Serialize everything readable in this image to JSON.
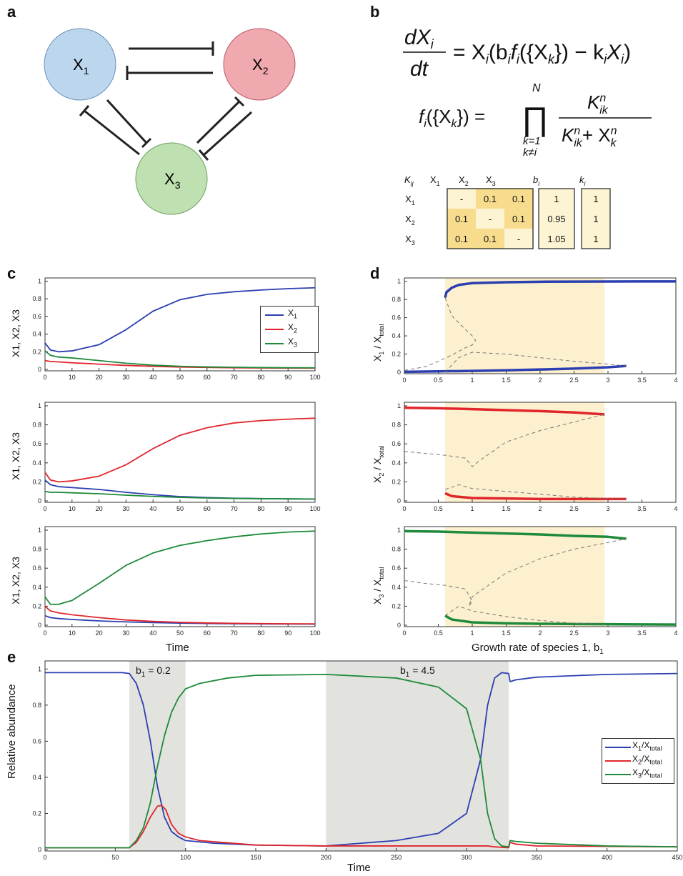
{
  "panels": {
    "a": "a",
    "b": "b",
    "c": "c",
    "d": "d",
    "e": "e"
  },
  "network": {
    "nodes": [
      {
        "label_main": "X",
        "label_sub": "1",
        "fill": "#bcd6ee",
        "stroke": "#6a8fb8"
      },
      {
        "label_main": "X",
        "label_sub": "2",
        "fill": "#f1a9b0",
        "stroke": "#b85a66"
      },
      {
        "label_main": "X",
        "label_sub": "3",
        "fill": "#bfe0b1",
        "stroke": "#6fa062"
      }
    ]
  },
  "equations": {
    "eq1_lhs_top": "dX",
    "eq1_lhs_top_sub": "i",
    "eq1_lhs_bot": "dt",
    "eq1_rhs": "= X",
    "eq1_rhs_sub": "i",
    "eq1_rhs2": "(b",
    "eq1_rhs2_sub": "i",
    "eq1_rhs3": "f",
    "eq1_rhs3_sub": "i",
    "eq1_rhs4": "({X",
    "eq1_rhs4_sub": "k",
    "eq1_rhs5": "}) − k",
    "eq1_rhs5_sub": "i",
    "eq1_rhs6": "X",
    "eq1_rhs6_sub": "i",
    "eq1_rhs7": ")",
    "eq2_lhs": "f",
    "eq2_lhs_sub": "i",
    "eq2_lhs2": "({X",
    "eq2_lhs2_sub": "k",
    "eq2_lhs3": "}) =",
    "eq2_prod_top": "N",
    "eq2_prod": "∏",
    "eq2_prod_bot1": "k=1",
    "eq2_prod_bot2": "k≠i",
    "eq2_num": "K",
    "eq2_num_sup": "n",
    "eq2_num_sub": "ik",
    "eq2_den": "K",
    "eq2_den_sup": "n",
    "eq2_den_sub": "ik",
    "eq2_den2": "+ X",
    "eq2_den2_sup": "n",
    "eq2_den2_sub": "k"
  },
  "param_table": {
    "corner": "K",
    "corner_sub": "ij",
    "cols": [
      {
        "m": "X",
        "s": "1"
      },
      {
        "m": "X",
        "s": "2"
      },
      {
        "m": "X",
        "s": "3"
      }
    ],
    "b_header": "b",
    "b_header_sub": "i",
    "k_header": "k",
    "k_header_sub": "i",
    "rows": [
      {
        "m": "X",
        "s": "1",
        "cells": [
          "-",
          "0.1",
          "0.1"
        ],
        "b": "1",
        "k": "1"
      },
      {
        "m": "X",
        "s": "2",
        "cells": [
          "0.1",
          "-",
          "0.1"
        ],
        "b": "0.95",
        "k": "1"
      },
      {
        "m": "X",
        "s": "3",
        "cells": [
          "0.1",
          "0.1",
          "-"
        ],
        "b": "1.05",
        "k": "1"
      }
    ]
  },
  "panel_c": {
    "xlabel": "Time",
    "ylabel": "X1, X2, X3",
    "xticks": [
      "0",
      "10",
      "20",
      "30",
      "40",
      "50",
      "60",
      "70",
      "80",
      "90",
      "100"
    ],
    "yticks": [
      "0",
      "0.2",
      "0.4",
      "0.6",
      "0.8",
      "1"
    ],
    "legend": [
      {
        "m": "X",
        "s": "1"
      },
      {
        "m": "X",
        "s": "2"
      },
      {
        "m": "X",
        "s": "3"
      }
    ]
  },
  "panel_d": {
    "xlabel": "Growth rate of species 1, b",
    "xlabel_sub": "1",
    "ylabels": [
      {
        "m": "X",
        "s": "1",
        "d": " / X",
        "ds": "total"
      },
      {
        "m": "X",
        "s": "2",
        "d": " / X",
        "ds": "total"
      },
      {
        "m": "X",
        "s": "3",
        "d": " / X",
        "ds": "total"
      }
    ],
    "xticks": [
      "0",
      "0.5",
      "1",
      "1.5",
      "2",
      "2.5",
      "3",
      "3.5",
      "4"
    ],
    "yticks": [
      "0",
      "0.2",
      "0.4",
      "0.6",
      "0.8",
      "1"
    ],
    "shade_range": [
      0.6,
      2.95
    ]
  },
  "panel_e": {
    "xlabel": "Time",
    "ylabel": "Relative abundance",
    "xticks": [
      "0",
      "50",
      "100",
      "150",
      "200",
      "250",
      "300",
      "350",
      "400",
      "450"
    ],
    "yticks": [
      "0",
      "0.2",
      "0.4",
      "0.6",
      "0.8",
      "1"
    ],
    "shade1": {
      "label": "b",
      "sub": "1",
      "value": " = 0.2",
      "range": [
        60,
        100
      ]
    },
    "shade2": {
      "label": "b",
      "sub": "1",
      "value": " = 4.5",
      "range": [
        200,
        330
      ]
    },
    "legend": [
      {
        "m": "X",
        "s": "1",
        "d": "/X",
        "ds": "total"
      },
      {
        "m": "X",
        "s": "2",
        "d": "/X",
        "ds": "total"
      },
      {
        "m": "X",
        "s": "3",
        "d": "/X",
        "ds": "total"
      }
    ]
  },
  "colors": {
    "blue": "#2b3fb0",
    "red": "#e0262b",
    "green": "#1e8a3a",
    "shade_yellow": "#fdf0cf",
    "shade_gray": "#e2e2df",
    "cell_dark": "#f7dc8e",
    "cell_light": "#fdf4d4"
  },
  "chart_data": [
    {
      "type": "line",
      "title": "",
      "xlabel": "Time",
      "ylabel": "X1, X2, X3",
      "xlim": [
        0,
        100
      ],
      "ylim": [
        0,
        1
      ],
      "series": [
        {
          "name": "X1",
          "x": [
            0,
            2,
            5,
            10,
            20,
            30,
            40,
            50,
            60,
            70,
            80,
            90,
            100
          ],
          "values": [
            0.3,
            0.22,
            0.2,
            0.21,
            0.28,
            0.45,
            0.66,
            0.79,
            0.85,
            0.88,
            0.9,
            0.915,
            0.925
          ]
        },
        {
          "name": "X2",
          "x": [
            0,
            2,
            5,
            10,
            20,
            30,
            40,
            50,
            60,
            70,
            80,
            90,
            100
          ],
          "values": [
            0.1,
            0.09,
            0.085,
            0.075,
            0.06,
            0.045,
            0.035,
            0.027,
            0.022,
            0.018,
            0.016,
            0.015,
            0.014
          ]
        },
        {
          "name": "X3",
          "x": [
            0,
            2,
            5,
            10,
            20,
            30,
            40,
            50,
            60,
            70,
            80,
            90,
            100
          ],
          "values": [
            0.21,
            0.16,
            0.14,
            0.13,
            0.1,
            0.07,
            0.048,
            0.035,
            0.028,
            0.024,
            0.021,
            0.019,
            0.018
          ]
        }
      ]
    },
    {
      "type": "line",
      "title": "",
      "xlabel": "",
      "ylabel": "X1, X2, X3",
      "xlim": [
        0,
        100
      ],
      "ylim": [
        0,
        1
      ],
      "series": [
        {
          "name": "X1",
          "x": [
            0,
            2,
            5,
            10,
            20,
            30,
            40,
            50,
            60,
            70,
            80,
            90,
            100
          ],
          "values": [
            0.22,
            0.17,
            0.15,
            0.14,
            0.12,
            0.09,
            0.065,
            0.045,
            0.035,
            0.028,
            0.024,
            0.021,
            0.019
          ]
        },
        {
          "name": "X2",
          "x": [
            0,
            2,
            5,
            10,
            20,
            30,
            40,
            50,
            60,
            70,
            80,
            90,
            100
          ],
          "values": [
            0.3,
            0.22,
            0.2,
            0.21,
            0.26,
            0.38,
            0.55,
            0.69,
            0.77,
            0.82,
            0.845,
            0.86,
            0.87
          ]
        },
        {
          "name": "X3",
          "x": [
            0,
            2,
            5,
            10,
            20,
            30,
            40,
            50,
            60,
            70,
            80,
            90,
            100
          ],
          "values": [
            0.1,
            0.09,
            0.09,
            0.085,
            0.075,
            0.06,
            0.047,
            0.037,
            0.03,
            0.026,
            0.023,
            0.021,
            0.02
          ]
        }
      ]
    },
    {
      "type": "line",
      "title": "",
      "xlabel": "Time",
      "ylabel": "X1, X2, X3",
      "xlim": [
        0,
        100
      ],
      "ylim": [
        0,
        1
      ],
      "series": [
        {
          "name": "X1",
          "x": [
            0,
            2,
            5,
            10,
            20,
            30,
            40,
            50,
            60,
            70,
            80,
            90,
            100
          ],
          "values": [
            0.1,
            0.08,
            0.07,
            0.06,
            0.045,
            0.035,
            0.027,
            0.022,
            0.018,
            0.015,
            0.013,
            0.012,
            0.011
          ]
        },
        {
          "name": "X2",
          "x": [
            0,
            2,
            5,
            10,
            20,
            30,
            40,
            50,
            60,
            70,
            80,
            90,
            100
          ],
          "values": [
            0.2,
            0.15,
            0.13,
            0.11,
            0.08,
            0.055,
            0.04,
            0.03,
            0.024,
            0.02,
            0.017,
            0.015,
            0.014
          ]
        },
        {
          "name": "X3",
          "x": [
            0,
            2,
            5,
            10,
            20,
            30,
            40,
            50,
            60,
            70,
            80,
            90,
            100
          ],
          "values": [
            0.3,
            0.22,
            0.22,
            0.26,
            0.44,
            0.63,
            0.76,
            0.84,
            0.89,
            0.93,
            0.96,
            0.98,
            0.99
          ]
        }
      ]
    },
    {
      "type": "line",
      "title": "",
      "xlabel": "",
      "ylabel": "X1 / Xtotal",
      "xlim": [
        0,
        4
      ],
      "ylim": [
        0,
        1
      ],
      "series": [
        {
          "name": "stable-high",
          "x": [
            0.6,
            0.62,
            0.7,
            0.8,
            1,
            1.5,
            2,
            2.5,
            3,
            3.5,
            4
          ],
          "values": [
            0.82,
            0.88,
            0.93,
            0.96,
            0.98,
            0.99,
            0.995,
            0.997,
            0.998,
            0.999,
            0.999
          ]
        },
        {
          "name": "stable-low",
          "x": [
            0,
            0.5,
            1,
            1.5,
            2,
            2.5,
            3,
            3.27
          ],
          "values": [
            0.005,
            0.01,
            0.015,
            0.022,
            0.03,
            0.04,
            0.055,
            0.07
          ]
        },
        {
          "name": "unstable-1",
          "x": [
            0.6,
            0.7,
            0.9,
            1.0,
            1.05,
            1.0,
            0.9,
            0.7,
            0.5,
            0.3,
            0
          ],
          "values": [
            0.82,
            0.62,
            0.47,
            0.4,
            0.35,
            0.3,
            0.27,
            0.19,
            0.12,
            0.06,
            0.02
          ]
        },
        {
          "name": "unstable-2",
          "x": [
            0.6,
            0.8,
            1.0,
            1.5,
            2,
            2.5,
            3,
            3.27
          ],
          "values": [
            0.0,
            0.16,
            0.22,
            0.2,
            0.16,
            0.12,
            0.09,
            0.07
          ]
        }
      ]
    },
    {
      "type": "line",
      "title": "",
      "xlabel": "",
      "ylabel": "X2 / Xtotal",
      "xlim": [
        0,
        4
      ],
      "ylim": [
        0,
        1
      ],
      "series": [
        {
          "name": "stable-high",
          "x": [
            0,
            0.5,
            1,
            1.5,
            2,
            2.5,
            2.95
          ],
          "values": [
            0.98,
            0.975,
            0.965,
            0.955,
            0.945,
            0.93,
            0.91
          ]
        },
        {
          "name": "stable-low",
          "x": [
            0.6,
            0.7,
            1,
            1.5,
            2,
            2.5,
            3,
            3.27
          ],
          "values": [
            0.08,
            0.05,
            0.03,
            0.025,
            0.02,
            0.02,
            0.02,
            0.02
          ]
        },
        {
          "name": "unstable-1",
          "x": [
            0,
            0.3,
            0.6,
            0.9,
            1.0,
            1.1,
            1.5,
            2,
            2.5,
            2.95
          ],
          "values": [
            0.52,
            0.5,
            0.48,
            0.45,
            0.36,
            0.42,
            0.62,
            0.74,
            0.83,
            0.91
          ]
        },
        {
          "name": "unstable-2",
          "x": [
            0.6,
            0.8,
            1.0,
            1.5,
            2,
            2.5,
            3,
            3.27
          ],
          "values": [
            0.12,
            0.17,
            0.13,
            0.1,
            0.07,
            0.04,
            0.025,
            0.02
          ]
        }
      ]
    },
    {
      "type": "line",
      "title": "",
      "xlabel": "Growth rate of species 1, b1",
      "ylabel": "X3 / Xtotal",
      "xlim": [
        0,
        4
      ],
      "ylim": [
        0,
        1
      ],
      "series": [
        {
          "name": "stable-high",
          "x": [
            0,
            0.5,
            1,
            1.5,
            2,
            2.5,
            3,
            3.27
          ],
          "values": [
            0.99,
            0.985,
            0.975,
            0.965,
            0.955,
            0.94,
            0.93,
            0.91
          ]
        },
        {
          "name": "stable-low",
          "x": [
            0.6,
            0.7,
            1,
            1.5,
            2,
            2.5,
            3,
            3.5,
            4
          ],
          "values": [
            0.1,
            0.06,
            0.03,
            0.02,
            0.015,
            0.012,
            0.01,
            0.008,
            0.007
          ]
        },
        {
          "name": "unstable-1",
          "x": [
            0,
            0.3,
            0.6,
            0.9,
            1.0,
            0.95,
            1.0,
            1.5,
            2,
            2.5,
            3,
            3.27
          ],
          "values": [
            0.47,
            0.44,
            0.42,
            0.38,
            0.25,
            0.2,
            0.3,
            0.55,
            0.7,
            0.8,
            0.87,
            0.91
          ]
        },
        {
          "name": "unstable-2",
          "x": [
            0.6,
            0.8,
            1.0,
            1.5,
            2,
            2.5,
            3
          ],
          "values": [
            0.1,
            0.2,
            0.15,
            0.09,
            0.05,
            0.02,
            0.01
          ]
        }
      ]
    },
    {
      "type": "line",
      "title": "",
      "xlabel": "Time",
      "ylabel": "Relative abundance",
      "xlim": [
        0,
        450
      ],
      "ylim": [
        0,
        1
      ],
      "series": [
        {
          "name": "X1/Xtotal",
          "x": [
            0,
            55,
            60,
            65,
            70,
            75,
            80,
            85,
            90,
            95,
            100,
            120,
            150,
            200,
            250,
            280,
            300,
            310,
            315,
            320,
            325,
            330,
            331,
            335,
            350,
            400,
            450
          ],
          "values": [
            0.98,
            0.98,
            0.975,
            0.92,
            0.8,
            0.6,
            0.35,
            0.18,
            0.1,
            0.07,
            0.05,
            0.035,
            0.025,
            0.02,
            0.05,
            0.09,
            0.2,
            0.5,
            0.8,
            0.95,
            0.98,
            0.975,
            0.93,
            0.94,
            0.955,
            0.97,
            0.975
          ]
        },
        {
          "name": "X2/Xtotal",
          "x": [
            0,
            60,
            65,
            70,
            75,
            80,
            83,
            86,
            90,
            95,
            100,
            110,
            150,
            200,
            250,
            300,
            315,
            320,
            330,
            331,
            335,
            350,
            450
          ],
          "values": [
            0.01,
            0.01,
            0.04,
            0.1,
            0.18,
            0.24,
            0.245,
            0.22,
            0.14,
            0.09,
            0.07,
            0.05,
            0.025,
            0.02,
            0.02,
            0.02,
            0.02,
            0.015,
            0.01,
            0.04,
            0.03,
            0.02,
            0.015
          ]
        },
        {
          "name": "X3/Xtotal",
          "x": [
            0,
            60,
            65,
            70,
            75,
            80,
            85,
            90,
            95,
            100,
            110,
            130,
            150,
            200,
            250,
            280,
            300,
            310,
            315,
            320,
            325,
            330,
            331,
            335,
            350,
            400,
            450
          ],
          "values": [
            0.01,
            0.01,
            0.05,
            0.12,
            0.26,
            0.46,
            0.63,
            0.76,
            0.84,
            0.89,
            0.92,
            0.95,
            0.965,
            0.97,
            0.95,
            0.9,
            0.78,
            0.5,
            0.2,
            0.06,
            0.02,
            0.015,
            0.05,
            0.045,
            0.035,
            0.02,
            0.015
          ]
        }
      ]
    }
  ]
}
